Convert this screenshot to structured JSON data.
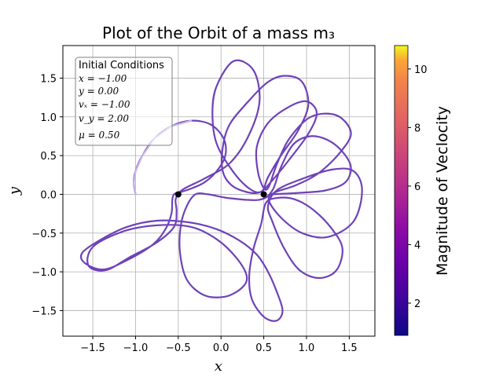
{
  "chart_data": {
    "type": "line",
    "title": "Plot of the Orbit of a mass m₃",
    "xlabel": "x",
    "ylabel": "y",
    "xlim": [
      -1.85,
      1.8
    ],
    "ylim": [
      -1.83,
      1.92
    ],
    "x_ticks": [
      -1.5,
      -1.0,
      -0.5,
      0.0,
      0.5,
      1.0,
      1.5
    ],
    "x_tick_labels": [
      "−1.5",
      "−1.0",
      "−0.5",
      "0.0",
      "0.5",
      "1.0",
      "1.5"
    ],
    "y_ticks": [
      -1.5,
      -1.0,
      -0.5,
      0.0,
      0.5,
      1.0,
      1.5
    ],
    "y_tick_labels": [
      "−1.5",
      "−1.0",
      "−0.5",
      "0.0",
      "0.5",
      "1.0",
      "1.5"
    ],
    "grid": true,
    "masses": [
      {
        "x": -0.5,
        "y": 0.0
      },
      {
        "x": 0.5,
        "y": 0.0
      }
    ],
    "initial_conditions": {
      "heading": "Initial Conditions",
      "lines": [
        "x = −1.00",
        "y = 0.00",
        "vₓ = −1.00",
        "v_y = 2.00",
        "μ = 0.50"
      ]
    },
    "colorbar": {
      "label": "Magnitude of Veclocity",
      "min": 0.9,
      "max": 10.8,
      "ticks": [
        2,
        4,
        6,
        8,
        10
      ],
      "tick_labels": [
        "2",
        "4",
        "6",
        "8",
        "10"
      ],
      "colormap": "plasma"
    },
    "orbit": [
      [
        -1.0,
        0.0
      ],
      [
        -1.02,
        0.15
      ],
      [
        -1.0,
        0.3
      ],
      [
        -0.92,
        0.5
      ],
      [
        -0.78,
        0.72
      ],
      [
        -0.58,
        0.88
      ],
      [
        -0.35,
        0.95
      ],
      [
        -0.12,
        0.9
      ],
      [
        0.03,
        0.72
      ],
      [
        0.05,
        0.5
      ],
      [
        -0.05,
        0.3
      ],
      [
        -0.2,
        0.15
      ],
      [
        -0.36,
        0.07
      ],
      [
        -0.47,
        0.03
      ],
      [
        -0.55,
        0.0
      ],
      [
        -0.57,
        -0.08
      ],
      [
        -0.58,
        -0.25
      ],
      [
        -0.65,
        -0.45
      ],
      [
        -0.8,
        -0.65
      ],
      [
        -1.1,
        -0.85
      ],
      [
        -1.38,
        -0.97
      ],
      [
        -1.6,
        -0.88
      ],
      [
        -1.62,
        -0.75
      ],
      [
        -1.4,
        -0.58
      ],
      [
        -1.1,
        -0.42
      ],
      [
        -0.75,
        -0.34
      ],
      [
        -0.38,
        -0.36
      ],
      [
        -0.05,
        -0.45
      ],
      [
        0.22,
        -0.6
      ],
      [
        0.42,
        -0.78
      ],
      [
        0.55,
        -1.0
      ],
      [
        0.65,
        -1.25
      ],
      [
        0.72,
        -1.5
      ],
      [
        0.65,
        -1.63
      ],
      [
        0.5,
        -1.58
      ],
      [
        0.36,
        -1.35
      ],
      [
        0.33,
        -1.05
      ],
      [
        0.38,
        -0.7
      ],
      [
        0.47,
        -0.38
      ],
      [
        0.52,
        -0.12
      ],
      [
        0.63,
        -0.05
      ],
      [
        0.85,
        -0.06
      ],
      [
        1.08,
        -0.2
      ],
      [
        1.3,
        -0.45
      ],
      [
        1.42,
        -0.7
      ],
      [
        1.35,
        -0.98
      ],
      [
        1.15,
        -1.08
      ],
      [
        0.92,
        -0.98
      ],
      [
        0.74,
        -0.7
      ],
      [
        0.6,
        -0.35
      ],
      [
        0.55,
        -0.15
      ],
      [
        0.65,
        0.05
      ],
      [
        0.95,
        0.2
      ],
      [
        1.3,
        0.32
      ],
      [
        1.55,
        0.3
      ],
      [
        1.65,
        0.05
      ],
      [
        1.55,
        -0.35
      ],
      [
        1.25,
        -0.55
      ],
      [
        0.95,
        -0.5
      ],
      [
        0.7,
        -0.3
      ],
      [
        0.56,
        -0.08
      ],
      [
        0.62,
        0.02
      ],
      [
        0.88,
        0.12
      ],
      [
        1.15,
        0.28
      ],
      [
        1.4,
        0.55
      ],
      [
        1.52,
        0.8
      ],
      [
        1.35,
        1.02
      ],
      [
        1.05,
        1.0
      ],
      [
        0.8,
        0.72
      ],
      [
        0.65,
        0.38
      ],
      [
        0.56,
        0.1
      ],
      [
        0.5,
        0.08
      ],
      [
        0.43,
        0.3
      ],
      [
        0.42,
        0.62
      ],
      [
        0.55,
        0.92
      ],
      [
        0.78,
        1.12
      ],
      [
        1.0,
        1.2
      ],
      [
        1.12,
        1.05
      ],
      [
        1.02,
        0.78
      ],
      [
        0.8,
        0.45
      ],
      [
        0.6,
        0.18
      ],
      [
        0.46,
        0.03
      ],
      [
        0.3,
        0.03
      ],
      [
        0.12,
        0.12
      ],
      [
        0.02,
        0.3
      ],
      [
        0.02,
        0.6
      ],
      [
        0.1,
        0.9
      ],
      [
        0.32,
        1.2
      ],
      [
        0.55,
        1.45
      ],
      [
        0.75,
        1.53
      ],
      [
        0.95,
        1.45
      ],
      [
        1.02,
        1.15
      ],
      [
        0.9,
        0.82
      ],
      [
        0.7,
        0.5
      ],
      [
        0.55,
        0.22
      ],
      [
        0.48,
        0.04
      ],
      [
        0.35,
        0.06
      ],
      [
        0.15,
        0.28
      ],
      [
        -0.05,
        0.65
      ],
      [
        -0.1,
        1.05
      ],
      [
        -0.05,
        1.4
      ],
      [
        0.15,
        1.72
      ],
      [
        0.38,
        1.6
      ],
      [
        0.45,
        1.2
      ],
      [
        0.32,
        0.75
      ],
      [
        0.1,
        0.4
      ],
      [
        -0.2,
        0.2
      ],
      [
        -0.45,
        0.06
      ],
      [
        -0.53,
        -0.06
      ],
      [
        -0.52,
        -0.22
      ],
      [
        -0.55,
        -0.42
      ],
      [
        -0.75,
        -0.62
      ],
      [
        -1.05,
        -0.8
      ],
      [
        -1.35,
        -0.98
      ],
      [
        -1.55,
        -0.92
      ],
      [
        -1.5,
        -0.68
      ],
      [
        -1.15,
        -0.48
      ],
      [
        -0.75,
        -0.4
      ],
      [
        -0.35,
        -0.42
      ],
      [
        -0.05,
        -0.58
      ],
      [
        0.18,
        -0.82
      ],
      [
        0.3,
        -1.05
      ],
      [
        0.25,
        -1.2
      ],
      [
        0.05,
        -1.32
      ],
      [
        -0.2,
        -1.3
      ],
      [
        -0.4,
        -1.1
      ],
      [
        -0.48,
        -0.75
      ],
      [
        -0.47,
        -0.4
      ],
      [
        -0.4,
        -0.15
      ],
      [
        -0.3,
        0.0
      ],
      [
        -0.15,
        0.0
      ],
      [
        0.1,
        -0.05
      ],
      [
        0.45,
        -0.07
      ],
      [
        0.6,
        0.05
      ],
      [
        0.7,
        0.35
      ],
      [
        0.85,
        0.65
      ],
      [
        1.05,
        0.75
      ],
      [
        1.25,
        0.7
      ],
      [
        1.42,
        0.55
      ],
      [
        1.52,
        0.35
      ],
      [
        1.45,
        0.15
      ],
      [
        1.22,
        0.05
      ],
      [
        0.92,
        0.02
      ],
      [
        0.6,
        0.0
      ]
    ]
  }
}
